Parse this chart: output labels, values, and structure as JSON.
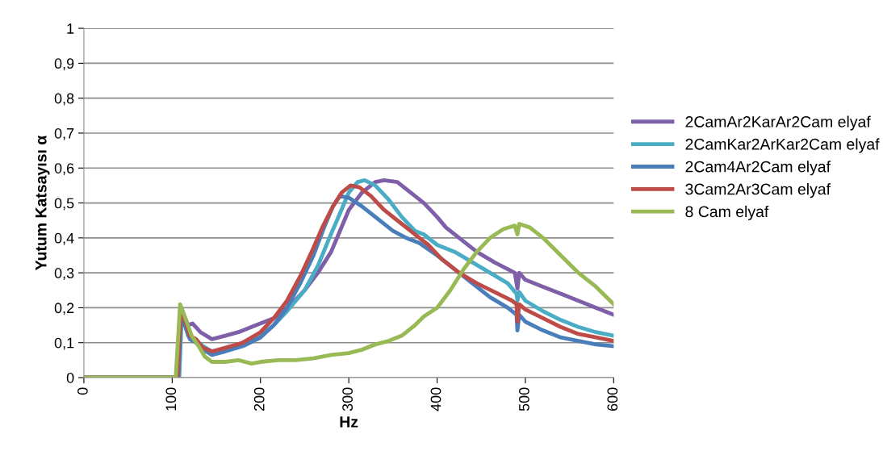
{
  "chart_data": {
    "type": "line",
    "xlabel": "Hz",
    "ylabel": "Yutum Katsayısı α",
    "xlim": [
      0,
      600
    ],
    "xticks": [
      0,
      100,
      200,
      300,
      400,
      500,
      600
    ],
    "ylim": [
      0,
      1
    ],
    "yticks": [
      0,
      {
        "value": 0.1,
        "label": "0,1"
      },
      {
        "value": 0.2,
        "label": "0,2"
      },
      {
        "value": 0.3,
        "label": "0,3"
      },
      {
        "value": 0.4,
        "label": "0,4"
      },
      {
        "value": 0.5,
        "label": "0,5"
      },
      {
        "value": 0.6,
        "label": "0,6"
      },
      {
        "value": 0.7,
        "label": "0,7"
      },
      {
        "value": 0.8,
        "label": "0,8"
      },
      {
        "value": 0.9,
        "label": "0,9"
      },
      1
    ],
    "grid": "y",
    "legend": "right",
    "marker": "none",
    "line_style": "solid",
    "series": [
      {
        "name": "2CamAr2KarAr2Cam elyaf",
        "color": "#7f60a8",
        "x": [
          0,
          105,
          110,
          118,
          123,
          132,
          145,
          160,
          175,
          195,
          215,
          235,
          250,
          265,
          280,
          290,
          300,
          315,
          330,
          340,
          355,
          370,
          385,
          400,
          410,
          425,
          445,
          465,
          488,
          491,
          493,
          500,
          520,
          540,
          560,
          580,
          600
        ],
        "values": [
          0,
          0,
          0.2,
          0.15,
          0.155,
          0.13,
          0.11,
          0.12,
          0.13,
          0.15,
          0.17,
          0.21,
          0.25,
          0.3,
          0.36,
          0.42,
          0.48,
          0.53,
          0.56,
          0.565,
          0.56,
          0.53,
          0.5,
          0.46,
          0.43,
          0.4,
          0.36,
          0.33,
          0.3,
          0.255,
          0.3,
          0.28,
          0.26,
          0.24,
          0.22,
          0.2,
          0.18
        ]
      },
      {
        "name": "2CamKar2ArKar2Cam elyaf",
        "color": "#4bacc6",
        "x": [
          0,
          108,
          111,
          118,
          125,
          135,
          145,
          160,
          180,
          200,
          215,
          230,
          250,
          265,
          278,
          290,
          300,
          310,
          318,
          330,
          345,
          360,
          375,
          385,
          400,
          420,
          440,
          460,
          480,
          490,
          491,
          493,
          500,
          520,
          540,
          560,
          580,
          600
        ],
        "values": [
          0,
          0,
          0.19,
          0.12,
          0.11,
          0.09,
          0.075,
          0.08,
          0.1,
          0.12,
          0.15,
          0.19,
          0.25,
          0.32,
          0.4,
          0.47,
          0.53,
          0.56,
          0.565,
          0.55,
          0.51,
          0.46,
          0.42,
          0.41,
          0.38,
          0.36,
          0.33,
          0.3,
          0.27,
          0.24,
          0.22,
          0.245,
          0.22,
          0.19,
          0.165,
          0.145,
          0.13,
          0.12
        ]
      },
      {
        "name": "2Cam4Ar2Cam elyaf",
        "color": "#4a7ebb",
        "x": [
          0,
          107,
          110,
          120,
          127,
          135,
          145,
          160,
          180,
          200,
          215,
          230,
          245,
          260,
          272,
          282,
          290,
          300,
          315,
          335,
          350,
          365,
          380,
          400,
          420,
          440,
          460,
          480,
          490,
          491,
          493,
          500,
          520,
          540,
          560,
          580,
          600
        ],
        "values": [
          0,
          0,
          0.18,
          0.11,
          0.1,
          0.08,
          0.065,
          0.075,
          0.09,
          0.115,
          0.15,
          0.2,
          0.27,
          0.35,
          0.43,
          0.49,
          0.52,
          0.515,
          0.49,
          0.45,
          0.42,
          0.4,
          0.385,
          0.35,
          0.31,
          0.27,
          0.23,
          0.2,
          0.18,
          0.135,
          0.18,
          0.16,
          0.135,
          0.115,
          0.105,
          0.095,
          0.09
        ]
      },
      {
        "name": "3Cam2Ar3Cam elyaf",
        "color": "#be4b48",
        "x": [
          0,
          106,
          110,
          120,
          127,
          135,
          145,
          160,
          180,
          200,
          215,
          230,
          245,
          258,
          270,
          282,
          292,
          302,
          312,
          325,
          340,
          360,
          380,
          390,
          405,
          425,
          445,
          465,
          485,
          490,
          491,
          493,
          500,
          520,
          540,
          560,
          580,
          600
        ],
        "values": [
          0,
          0,
          0.2,
          0.12,
          0.11,
          0.085,
          0.075,
          0.085,
          0.1,
          0.13,
          0.17,
          0.22,
          0.29,
          0.36,
          0.43,
          0.49,
          0.53,
          0.55,
          0.545,
          0.52,
          0.48,
          0.44,
          0.4,
          0.38,
          0.34,
          0.3,
          0.27,
          0.245,
          0.22,
          0.21,
          0.16,
          0.21,
          0.195,
          0.17,
          0.145,
          0.125,
          0.115,
          0.105
        ]
      },
      {
        "name": "8 Cam elyaf",
        "color": "#98b954",
        "x": [
          0,
          104,
          109,
          112,
          122,
          130,
          137,
          145,
          160,
          175,
          190,
          200,
          220,
          240,
          260,
          280,
          300,
          315,
          330,
          345,
          360,
          375,
          385,
          400,
          415,
          430,
          445,
          460,
          475,
          488,
          491,
          493,
          505,
          520,
          540,
          560,
          580,
          600
        ],
        "values": [
          0,
          0,
          0.21,
          0.19,
          0.12,
          0.09,
          0.06,
          0.045,
          0.045,
          0.05,
          0.04,
          0.045,
          0.05,
          0.05,
          0.055,
          0.065,
          0.07,
          0.08,
          0.095,
          0.105,
          0.12,
          0.15,
          0.175,
          0.2,
          0.25,
          0.31,
          0.36,
          0.4,
          0.425,
          0.435,
          0.41,
          0.44,
          0.43,
          0.4,
          0.35,
          0.3,
          0.26,
          0.21
        ]
      }
    ]
  }
}
